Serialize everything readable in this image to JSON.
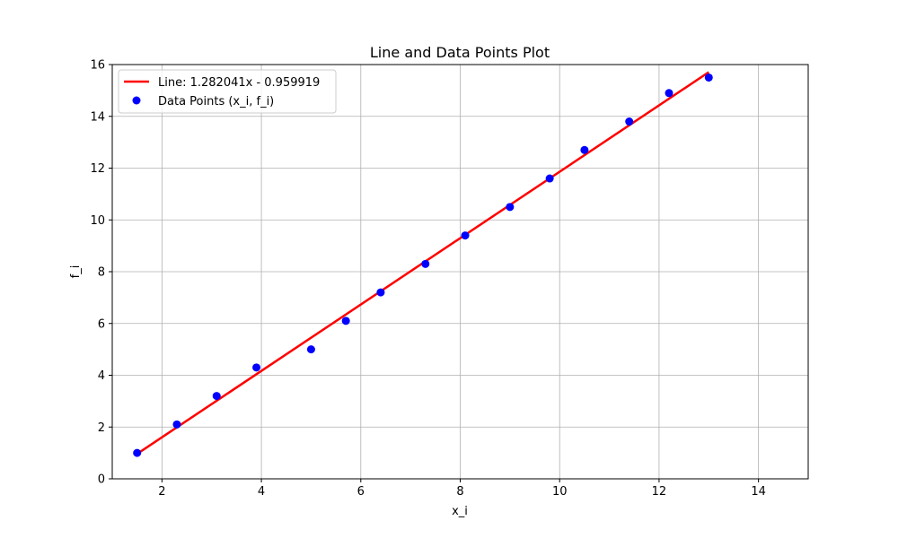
{
  "chart_data": {
    "type": "line",
    "title": "Line and Data Points Plot",
    "xlabel": "x_i",
    "ylabel": "f_i",
    "xlim": [
      1.0,
      15.0
    ],
    "ylim": [
      0,
      16
    ],
    "xticks": [
      2,
      4,
      6,
      8,
      10,
      12,
      14
    ],
    "yticks": [
      0,
      2,
      4,
      6,
      8,
      10,
      12,
      14,
      16
    ],
    "grid": true,
    "legend_position": "top-left",
    "series": [
      {
        "name": "Line: 1.282041x - 0.959919",
        "kind": "line",
        "color": "#ff0000",
        "x": [
          1.5,
          13.0
        ],
        "y": [
          0.963,
          15.707
        ]
      },
      {
        "name": "Data Points (x_i, f_i)",
        "kind": "scatter",
        "color": "#0000ff",
        "x": [
          1.5,
          2.3,
          3.1,
          3.9,
          5.0,
          5.7,
          6.4,
          7.3,
          8.1,
          9.0,
          9.8,
          10.5,
          11.4,
          12.2,
          13.0
        ],
        "y": [
          1.0,
          2.1,
          3.2,
          4.3,
          5.0,
          6.1,
          7.2,
          8.3,
          9.4,
          10.5,
          11.6,
          12.7,
          13.8,
          14.9,
          15.5
        ]
      }
    ]
  }
}
